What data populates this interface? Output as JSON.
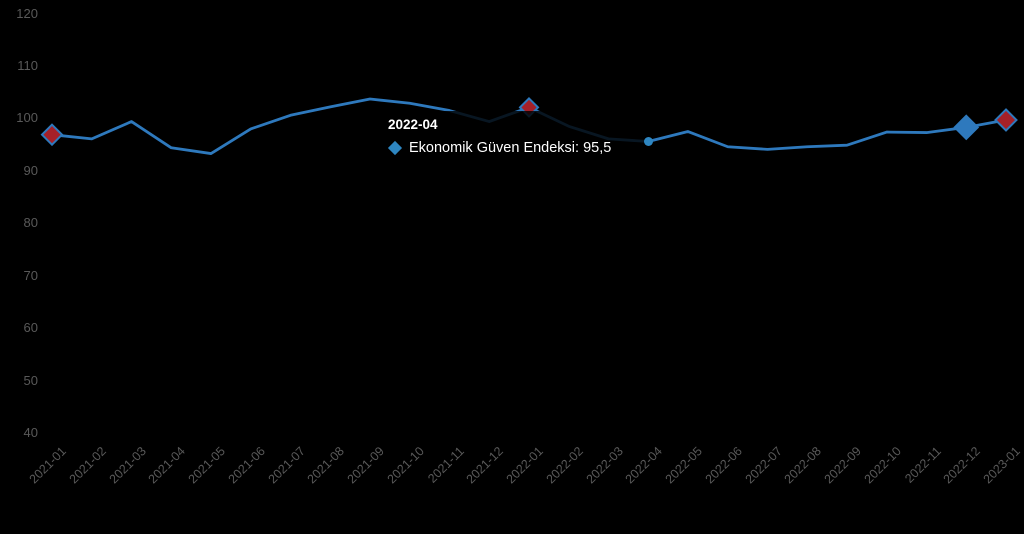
{
  "chart_data": {
    "type": "line",
    "title": "",
    "series_name": "Ekonomik Güven Endeksi",
    "x": [
      "2021-01",
      "2021-02",
      "2021-03",
      "2021-04",
      "2021-05",
      "2021-06",
      "2021-07",
      "2021-08",
      "2021-09",
      "2021-10",
      "2021-11",
      "2021-12",
      "2022-01",
      "2022-02",
      "2022-03",
      "2022-04",
      "2022-05",
      "2022-06",
      "2022-07",
      "2022-08",
      "2022-09",
      "2022-10",
      "2022-11",
      "2022-12",
      "2023-01"
    ],
    "values": [
      96.8,
      96.0,
      99.3,
      94.3,
      93.2,
      97.9,
      100.5,
      102.1,
      103.6,
      102.8,
      101.4,
      99.3,
      102.0,
      98.4,
      96.0,
      95.5,
      97.4,
      94.5,
      94.0,
      94.5,
      94.8,
      97.3,
      97.2,
      98.2,
      99.6
    ],
    "ylim": [
      40,
      120
    ],
    "yticks": [
      120,
      110,
      100,
      90,
      80,
      70,
      60,
      50,
      40
    ],
    "grid": false,
    "legend_position": "none",
    "line_color": "#2E79BD",
    "line_width": 2.8,
    "markers": [
      {
        "index": 0,
        "shape": "diamond",
        "fill": "#A62028",
        "stroke": "#2E79BD",
        "half": 10
      },
      {
        "index": 12,
        "shape": "diamond",
        "fill": "#A62028",
        "stroke": "#2E79BD",
        "half": 9
      },
      {
        "index": 15,
        "shape": "dot",
        "fill": "#2E86C1",
        "radius": 4.5,
        "above_tooltip": true
      },
      {
        "index": 23,
        "shape": "diamond",
        "fill": "#2E79BD",
        "stroke": "#2E79BD",
        "half": 11.5
      },
      {
        "index": 24,
        "shape": "diamond",
        "fill": "#A62028",
        "stroke": "#2E79BD",
        "half": 10.5
      }
    ]
  },
  "tooltip": {
    "date": "2022-04",
    "series_label": "Ekonomik Güven Endeksi",
    "value_display": "95,5",
    "series_text": "Ekonomik Güven Endeksi: 95,5"
  },
  "colors": {
    "background": "#000000",
    "line": "#2E79BD",
    "red_marker": "#A62028",
    "blue_marker": "#2E79BD",
    "hover_dot": "#2E86C1",
    "axis_label": "#595959",
    "tooltip_text": "#FFFFFF"
  }
}
